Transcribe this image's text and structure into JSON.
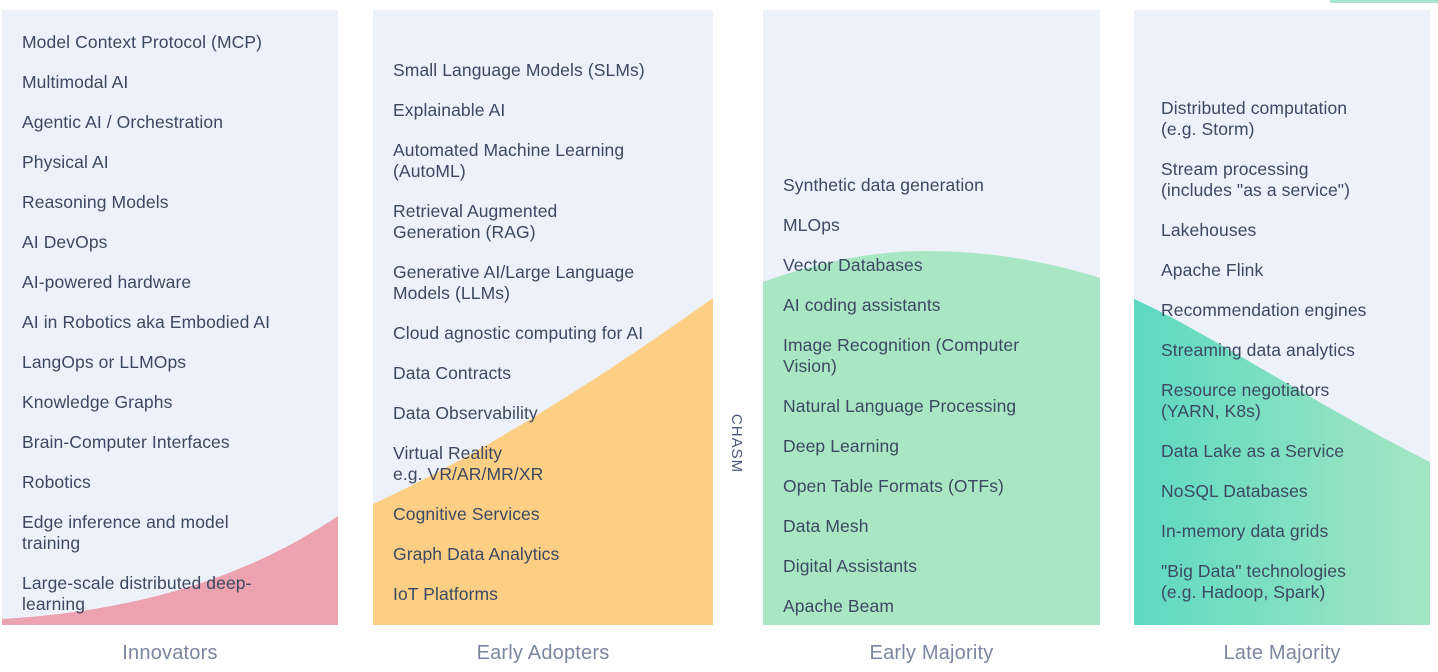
{
  "chasm": {
    "label": "CHASM"
  },
  "stages": [
    {
      "label": "Innovators",
      "color": "#eda3af",
      "items": [
        "Model Context Protocol (MCP)",
        "Multimodal AI",
        "Agentic AI / Orchestration",
        "Physical AI",
        "Reasoning Models",
        "AI DevOps",
        "AI-powered hardware",
        "AI in Robotics aka Embodied AI",
        "LangOps or LLMOps",
        "Knowledge Graphs",
        "Brain-Computer Interfaces",
        "Robotics",
        "Edge inference and model\ntraining",
        "Large-scale distributed deep-\nlearning"
      ]
    },
    {
      "label": "Early Adopters",
      "color": "#fccf84",
      "items": [
        "Small Language Models (SLMs)",
        "Explainable AI",
        "Automated Machine Learning\n(AutoML)",
        "Retrieval Augmented\nGeneration (RAG)",
        "Generative AI/Large Language\nModels (LLMs)",
        "Cloud agnostic computing for AI",
        "Data Contracts",
        "Data Observability",
        "Virtual Reality\ne.g. VR/AR/MR/XR",
        "Cognitive Services",
        "Graph Data Analytics",
        "IoT Platforms"
      ]
    },
    {
      "label": "Early Majority",
      "color": "#a9e7c4",
      "items": [
        "Synthetic data generation",
        "MLOps",
        "Vector Databases",
        "AI coding assistants",
        "Image Recognition (Computer\nVision)",
        "Natural Language Processing",
        "Deep Learning",
        "Open Table Formats (OTFs)",
        "Data Mesh",
        "Digital Assistants",
        "Apache Beam"
      ]
    },
    {
      "label": "Late Majority",
      "color_start": "#5cd9c1",
      "color_end": "#a5e6c3",
      "items": [
        "Distributed computation\n(e.g. Storm)",
        "Stream processing\n(includes \"as a service\")",
        "Lakehouses",
        "Apache Flink",
        "Recommendation engines",
        "Streaming data analytics",
        "Resource negotiators\n(YARN, K8s)",
        "Data Lake as a Service",
        "NoSQL Databases",
        "In-memory data grids",
        "\"Big Data\" technologies\n(e.g. Hadoop, Spark)"
      ]
    }
  ],
  "colors": {
    "column_background": "#edf1f9",
    "item_text": "#3c4962",
    "label_text": "#7b86a0",
    "chasm_text": "#4a5878"
  }
}
